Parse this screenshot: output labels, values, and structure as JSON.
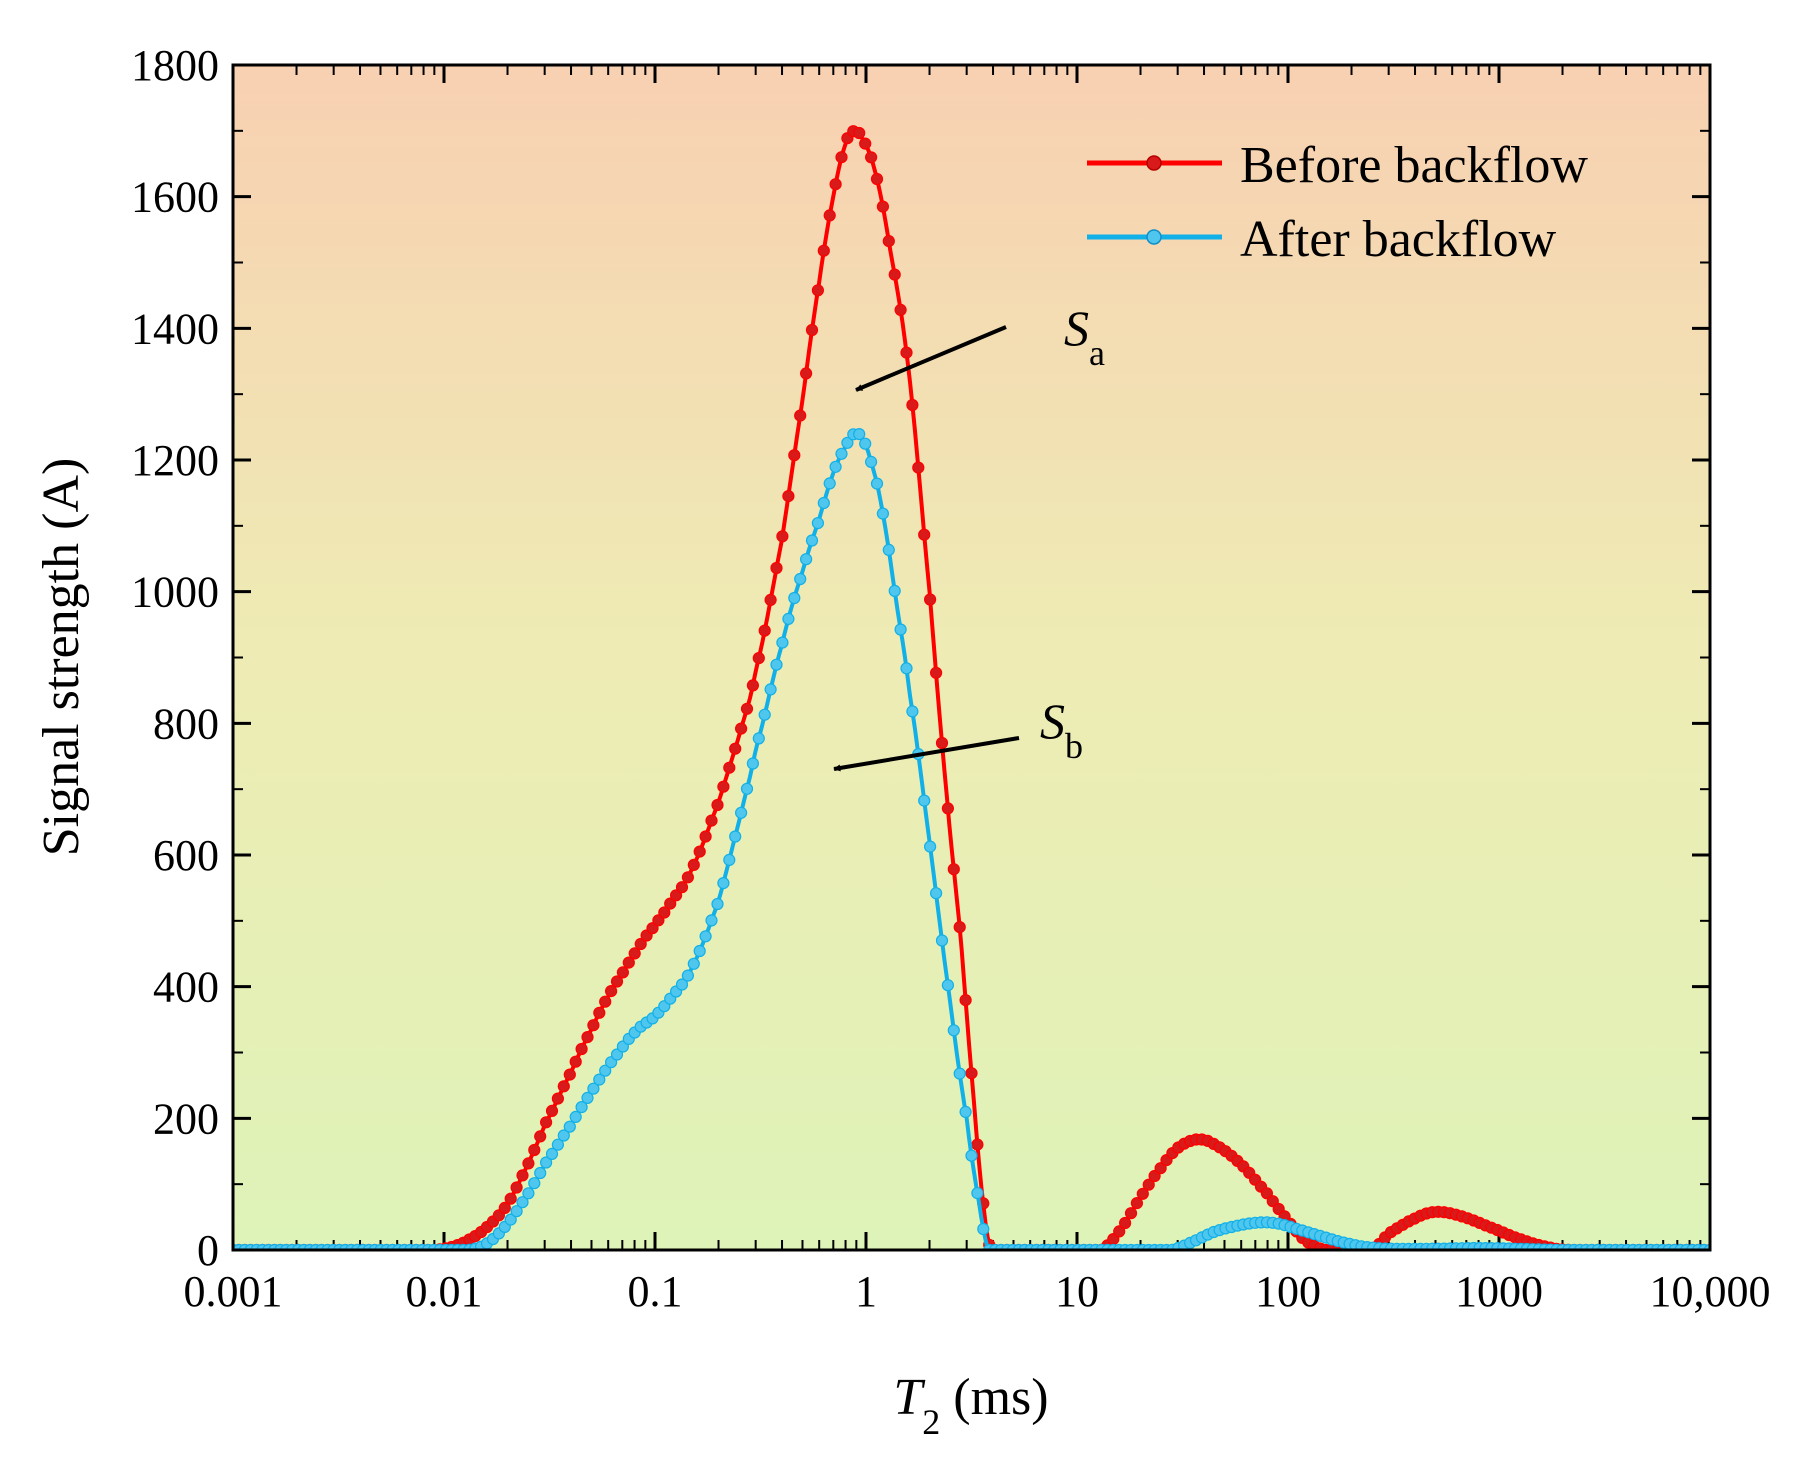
{
  "chart_data": {
    "type": "line",
    "xlabel": {
      "symbol": "T",
      "subscript": "2",
      "unit": " (ms)"
    },
    "ylabel": "Signal strength (A)",
    "x_scale": "log",
    "xlim": [
      0.001,
      10000
    ],
    "ylim": [
      0,
      1800
    ],
    "x_ticks": [
      {
        "value": 0.001,
        "label": "0.001"
      },
      {
        "value": 0.01,
        "label": "0.01"
      },
      {
        "value": 0.1,
        "label": "0.1"
      },
      {
        "value": 1,
        "label": "1"
      },
      {
        "value": 10,
        "label": "10"
      },
      {
        "value": 100,
        "label": "100"
      },
      {
        "value": 1000,
        "label": "1000"
      },
      {
        "value": 10000,
        "label": "10,000"
      }
    ],
    "y_ticks": [
      {
        "value": 0,
        "label": "0"
      },
      {
        "value": 200,
        "label": "200"
      },
      {
        "value": 400,
        "label": "400"
      },
      {
        "value": 600,
        "label": "600"
      },
      {
        "value": 800,
        "label": "800"
      },
      {
        "value": 1000,
        "label": "1000"
      },
      {
        "value": 1200,
        "label": "1200"
      },
      {
        "value": 1400,
        "label": "1400"
      },
      {
        "value": 1600,
        "label": "1600"
      },
      {
        "value": 1800,
        "label": "1800"
      }
    ],
    "legend_position": "top-right",
    "background_gradient": [
      "#f8d0b2",
      "#eeecb4",
      "#def3b8"
    ],
    "series": [
      {
        "name": "Before backflow",
        "color": "#ff0000",
        "marker_color": "#d81a1a",
        "points": [
          [
            0.001,
            0
          ],
          [
            0.003,
            0
          ],
          [
            0.006,
            0
          ],
          [
            0.009,
            0
          ],
          [
            0.011,
            5
          ],
          [
            0.013,
            15
          ],
          [
            0.016,
            35
          ],
          [
            0.02,
            70
          ],
          [
            0.025,
            130
          ],
          [
            0.03,
            190
          ],
          [
            0.04,
            270
          ],
          [
            0.05,
            335
          ],
          [
            0.06,
            385
          ],
          [
            0.07,
            420
          ],
          [
            0.08,
            450
          ],
          [
            0.09,
            475
          ],
          [
            0.1,
            495
          ],
          [
            0.12,
            530
          ],
          [
            0.15,
            580
          ],
          [
            0.2,
            680
          ],
          [
            0.25,
            780
          ],
          [
            0.3,
            880
          ],
          [
            0.4,
            1080
          ],
          [
            0.5,
            1290
          ],
          [
            0.6,
            1470
          ],
          [
            0.7,
            1600
          ],
          [
            0.8,
            1680
          ],
          [
            0.88,
            1700
          ],
          [
            0.95,
            1690
          ],
          [
            1.1,
            1640
          ],
          [
            1.3,
            1520
          ],
          [
            1.6,
            1330
          ],
          [
            2.0,
            1000
          ],
          [
            2.4,
            700
          ],
          [
            2.8,
            480
          ],
          [
            3.2,
            250
          ],
          [
            3.6,
            70
          ],
          [
            3.9,
            0
          ],
          [
            6,
            0
          ],
          [
            10,
            0
          ],
          [
            13,
            0
          ],
          [
            16,
            30
          ],
          [
            20,
            80
          ],
          [
            25,
            125
          ],
          [
            30,
            155
          ],
          [
            37,
            168
          ],
          [
            45,
            160
          ],
          [
            60,
            130
          ],
          [
            80,
            85
          ],
          [
            100,
            45
          ],
          [
            120,
            15
          ],
          [
            150,
            0
          ],
          [
            250,
            0
          ],
          [
            300,
            25
          ],
          [
            400,
            48
          ],
          [
            500,
            58
          ],
          [
            650,
            52
          ],
          [
            900,
            35
          ],
          [
            1300,
            15
          ],
          [
            1800,
            3
          ],
          [
            2200,
            0
          ],
          [
            10000,
            0
          ]
        ]
      },
      {
        "name": "After backflow",
        "color": "#12b0e8",
        "marker_color": "#4fc6ee",
        "points": [
          [
            0.001,
            0
          ],
          [
            0.005,
            0
          ],
          [
            0.01,
            0
          ],
          [
            0.013,
            0
          ],
          [
            0.016,
            10
          ],
          [
            0.02,
            40
          ],
          [
            0.025,
            85
          ],
          [
            0.03,
            130
          ],
          [
            0.04,
            190
          ],
          [
            0.05,
            240
          ],
          [
            0.06,
            280
          ],
          [
            0.08,
            330
          ],
          [
            0.1,
            355
          ],
          [
            0.12,
            385
          ],
          [
            0.15,
            430
          ],
          [
            0.2,
            530
          ],
          [
            0.25,
            650
          ],
          [
            0.3,
            760
          ],
          [
            0.4,
            920
          ],
          [
            0.5,
            1030
          ],
          [
            0.6,
            1110
          ],
          [
            0.7,
            1180
          ],
          [
            0.8,
            1220
          ],
          [
            0.88,
            1240
          ],
          [
            0.95,
            1235
          ],
          [
            1.05,
            1200
          ],
          [
            1.2,
            1120
          ],
          [
            1.4,
            980
          ],
          [
            1.6,
            850
          ],
          [
            2.0,
            620
          ],
          [
            2.5,
            380
          ],
          [
            3.0,
            200
          ],
          [
            3.4,
            80
          ],
          [
            3.8,
            0
          ],
          [
            10,
            0
          ],
          [
            20,
            0
          ],
          [
            28,
            0
          ],
          [
            35,
            12
          ],
          [
            45,
            28
          ],
          [
            60,
            38
          ],
          [
            75,
            42
          ],
          [
            90,
            40
          ],
          [
            110,
            32
          ],
          [
            140,
            22
          ],
          [
            180,
            12
          ],
          [
            230,
            5
          ],
          [
            300,
            2
          ],
          [
            500,
            2
          ],
          [
            800,
            3
          ],
          [
            1200,
            2
          ],
          [
            2000,
            0
          ],
          [
            10000,
            0
          ]
        ]
      }
    ],
    "annotations": [
      {
        "symbol": "S",
        "subscript": "a"
      },
      {
        "symbol": "S",
        "subscript": "b"
      }
    ]
  }
}
